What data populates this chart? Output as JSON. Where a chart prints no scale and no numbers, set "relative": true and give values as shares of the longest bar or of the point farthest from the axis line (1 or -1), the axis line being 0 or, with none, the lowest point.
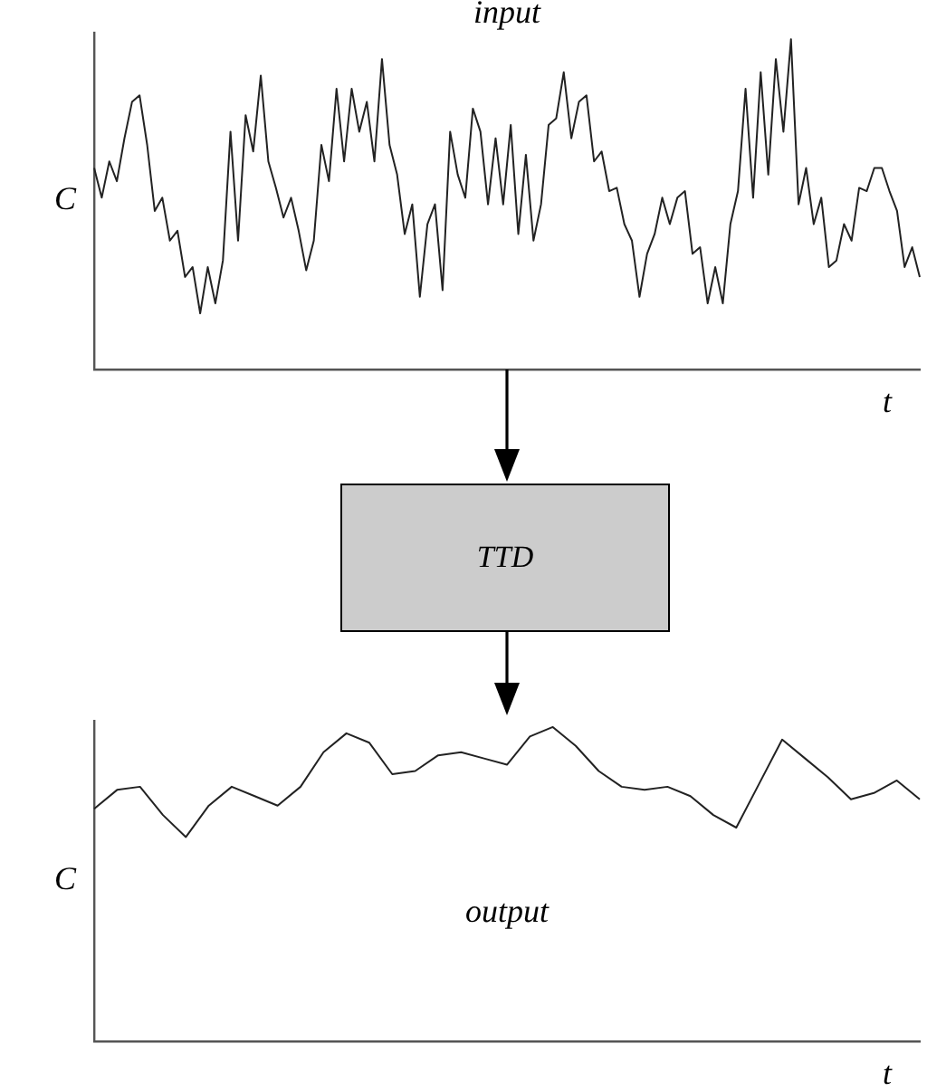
{
  "chart_data": [
    {
      "type": "line",
      "title": "input",
      "xlabel": "t",
      "ylabel": "C",
      "relative": true,
      "categories": [
        null,
        null,
        null,
        null,
        null,
        null,
        null,
        null,
        null,
        null,
        null,
        null,
        null,
        null,
        null,
        null,
        null,
        null,
        null,
        null,
        null,
        null,
        null,
        null,
        null,
        null,
        null,
        null,
        null,
        null,
        null,
        null,
        null,
        null,
        null,
        null,
        null,
        null,
        null,
        null,
        null,
        null,
        null,
        null,
        null,
        null,
        null,
        null,
        null,
        null,
        null,
        null,
        null,
        null,
        null,
        null,
        null,
        null,
        null,
        null,
        null,
        null,
        null,
        null,
        null,
        null,
        null,
        null,
        null,
        null,
        null,
        null,
        null,
        null,
        null,
        null,
        null,
        null,
        null,
        null,
        null,
        null,
        null,
        null,
        null,
        null,
        null,
        null,
        null,
        null,
        null,
        null,
        null,
        null,
        null,
        null,
        null,
        null,
        null,
        null,
        null,
        null,
        null,
        null,
        null,
        null,
        null,
        null,
        null,
        null
      ],
      "series": [
        {
          "color": "#222222",
          "values": [
            0.61,
            0.52,
            0.63,
            0.57,
            0.7,
            0.81,
            0.83,
            0.68,
            0.48,
            0.52,
            0.39,
            0.42,
            0.28,
            0.31,
            0.17,
            0.31,
            0.2,
            0.33,
            0.72,
            0.39,
            0.77,
            0.66,
            0.89,
            0.63,
            0.55,
            0.46,
            0.52,
            0.42,
            0.3,
            0.39,
            0.68,
            0.57,
            0.85,
            0.63,
            0.85,
            0.72,
            0.81,
            0.63,
            0.94,
            0.68,
            0.59,
            0.41,
            0.5,
            0.22,
            0.44,
            0.5,
            0.24,
            0.72,
            0.59,
            0.52,
            0.79,
            0.72,
            0.5,
            0.7,
            0.5,
            0.74,
            0.41,
            0.65,
            0.39,
            0.5,
            0.74,
            0.76,
            0.9,
            0.7,
            0.81,
            0.83,
            0.63,
            0.66,
            0.54,
            0.55,
            0.44,
            0.39,
            0.22,
            0.35,
            0.41,
            0.52,
            0.44,
            0.52,
            0.54,
            0.35,
            0.37,
            0.2,
            0.31,
            0.2,
            0.44,
            0.54,
            0.85,
            0.52,
            0.9,
            0.59,
            0.94,
            0.72,
            1.0,
            0.5,
            0.61,
            0.44,
            0.52,
            0.31,
            0.33,
            0.44,
            0.39,
            0.55,
            0.54,
            0.61,
            0.61,
            0.54,
            0.48,
            0.31,
            0.37,
            0.28
          ]
        }
      ]
    },
    {
      "type": "other",
      "annotations": [
        "TTD"
      ]
    },
    {
      "type": "line",
      "xlabel": "t",
      "ylabel": "C",
      "annotations": [
        "output"
      ],
      "relative": true,
      "categories": [
        null,
        null,
        null,
        null,
        null,
        null,
        null,
        null,
        null,
        null,
        null,
        null,
        null,
        null,
        null,
        null,
        null,
        null,
        null,
        null,
        null,
        null,
        null,
        null,
        null,
        null,
        null,
        null,
        null,
        null,
        null,
        null,
        null,
        null,
        null,
        null,
        null
      ],
      "series": [
        {
          "color": "#222222",
          "values": [
            0.74,
            0.8,
            0.81,
            0.72,
            0.65,
            0.75,
            0.81,
            0.78,
            0.75,
            0.81,
            0.92,
            0.98,
            0.95,
            0.85,
            0.86,
            0.91,
            0.92,
            0.9,
            0.88,
            0.97,
            1.0,
            0.94,
            0.86,
            0.81,
            0.8,
            0.81,
            0.78,
            0.72,
            0.68,
            0.82,
            0.96,
            0.9,
            0.84,
            0.77,
            0.79,
            0.83,
            0.77
          ]
        }
      ]
    }
  ]
}
